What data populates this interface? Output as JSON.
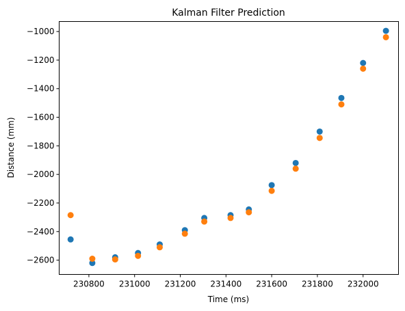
{
  "chart_data": {
    "type": "scatter",
    "title": "Kalman Filter Prediction",
    "xlabel": "Time (ms)",
    "ylabel": "Distance (mm)",
    "xlim": [
      230670,
      232155
    ],
    "ylim": [
      -2700,
      -930
    ],
    "xticks": [
      230800,
      231000,
      231200,
      231400,
      231600,
      231800,
      232000
    ],
    "yticks": [
      -2600,
      -2400,
      -2200,
      -2000,
      -1800,
      -1600,
      -1400,
      -1200,
      -1000
    ],
    "grid": false,
    "series": [
      {
        "color": "#1f77b4",
        "x": [
          230720,
          230815,
          230915,
          231015,
          231110,
          231220,
          231305,
          231420,
          231500,
          231600,
          231705,
          231810,
          231905,
          232000,
          232100
        ],
        "y": [
          -2455,
          -2620,
          -2580,
          -2550,
          -2490,
          -2390,
          -2305,
          -2285,
          -2245,
          -2075,
          -1920,
          -1700,
          -1465,
          -1220,
          -995
        ]
      },
      {
        "color": "#ff7f0e",
        "x": [
          230720,
          230815,
          230915,
          231015,
          231110,
          231220,
          231305,
          231420,
          231500,
          231600,
          231705,
          231810,
          231905,
          232000,
          232100
        ],
        "y": [
          -2285,
          -2590,
          -2595,
          -2570,
          -2510,
          -2415,
          -2330,
          -2305,
          -2265,
          -2115,
          -1960,
          -1745,
          -1510,
          -1260,
          -1040
        ]
      }
    ]
  }
}
